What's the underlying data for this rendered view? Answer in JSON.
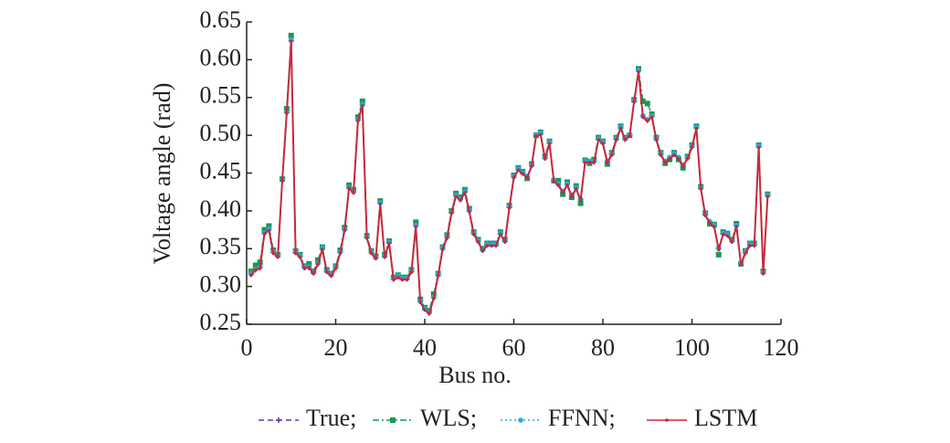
{
  "chart_data": {
    "type": "line",
    "x_label": "Bus no.",
    "y_label": "Voltage angle (rad)",
    "xlim": [
      0,
      120
    ],
    "xticks": [
      0,
      20,
      40,
      60,
      80,
      100,
      120
    ],
    "ylim": [
      0.25,
      0.65
    ],
    "yticks": [
      0.25,
      {
        "value": 0.3,
        "label": "0.30"
      },
      0.35,
      {
        "value": 0.4,
        "label": "0.40"
      },
      0.45,
      {
        "value": 0.5,
        "label": "0.50"
      },
      0.55,
      {
        "value": 0.6,
        "label": "0.60"
      },
      0.65
    ],
    "x": [
      1,
      2,
      3,
      4,
      5,
      6,
      7,
      8,
      9,
      10,
      11,
      12,
      13,
      14,
      15,
      16,
      17,
      18,
      19,
      20,
      21,
      22,
      23,
      24,
      25,
      26,
      27,
      28,
      29,
      30,
      31,
      32,
      33,
      34,
      35,
      36,
      37,
      38,
      39,
      40,
      41,
      42,
      43,
      44,
      45,
      46,
      47,
      48,
      49,
      50,
      51,
      52,
      53,
      54,
      55,
      56,
      57,
      58,
      59,
      60,
      61,
      62,
      63,
      64,
      65,
      66,
      67,
      68,
      69,
      70,
      71,
      72,
      73,
      74,
      75,
      76,
      77,
      78,
      79,
      80,
      81,
      82,
      83,
      84,
      85,
      86,
      87,
      88,
      89,
      90,
      91,
      92,
      93,
      94,
      95,
      96,
      97,
      98,
      99,
      100,
      101,
      102,
      103,
      104,
      105,
      106,
      107,
      108,
      109,
      110,
      111,
      112,
      113,
      114,
      115,
      116,
      117
    ],
    "series": [
      {
        "name": "True;",
        "color": "#7030a0",
        "style": "dashed",
        "marker": "plus",
        "values": [
          0.316,
          0.322,
          0.325,
          0.37,
          0.375,
          0.345,
          0.34,
          0.44,
          0.53,
          0.625,
          0.345,
          0.34,
          0.325,
          0.325,
          0.318,
          0.33,
          0.35,
          0.32,
          0.315,
          0.325,
          0.345,
          0.375,
          0.43,
          0.425,
          0.52,
          0.54,
          0.365,
          0.345,
          0.338,
          0.41,
          0.34,
          0.358,
          0.31,
          0.313,
          0.31,
          0.31,
          0.32,
          0.38,
          0.28,
          0.27,
          0.265,
          0.285,
          0.315,
          0.35,
          0.365,
          0.398,
          0.42,
          0.415,
          0.425,
          0.4,
          0.37,
          0.36,
          0.348,
          0.355,
          0.355,
          0.355,
          0.37,
          0.36,
          0.405,
          0.445,
          0.455,
          0.45,
          0.445,
          0.46,
          0.5,
          0.502,
          0.47,
          0.49,
          0.44,
          0.435,
          0.425,
          0.435,
          0.42,
          0.43,
          0.415,
          0.465,
          0.465,
          0.465,
          0.495,
          0.49,
          0.465,
          0.475,
          0.495,
          0.51,
          0.495,
          0.5,
          0.545,
          0.585,
          0.525,
          0.52,
          0.525,
          0.495,
          0.475,
          0.465,
          0.47,
          0.475,
          0.47,
          0.46,
          0.47,
          0.485,
          0.51,
          0.43,
          0.395,
          0.385,
          0.38,
          0.35,
          0.37,
          0.368,
          0.36,
          0.38,
          0.33,
          0.345,
          0.355,
          0.355,
          0.485,
          0.318,
          0.42
        ]
      },
      {
        "name": "WLS;",
        "color": "#1a9850",
        "style": "dashdot",
        "marker": "square",
        "values": [
          0.32,
          0.328,
          0.332,
          0.375,
          0.38,
          0.348,
          0.342,
          0.442,
          0.535,
          0.632,
          0.347,
          0.342,
          0.327,
          0.33,
          0.32,
          0.335,
          0.352,
          0.322,
          0.317,
          0.327,
          0.348,
          0.378,
          0.434,
          0.428,
          0.524,
          0.545,
          0.367,
          0.347,
          0.34,
          0.413,
          0.342,
          0.36,
          0.312,
          0.315,
          0.312,
          0.312,
          0.322,
          0.385,
          0.283,
          0.272,
          0.268,
          0.29,
          0.317,
          0.352,
          0.368,
          0.4,
          0.423,
          0.418,
          0.428,
          0.403,
          0.372,
          0.362,
          0.35,
          0.357,
          0.357,
          0.357,
          0.372,
          0.362,
          0.407,
          0.447,
          0.457,
          0.452,
          0.443,
          0.462,
          0.5,
          0.504,
          0.472,
          0.492,
          0.44,
          0.44,
          0.422,
          0.438,
          0.418,
          0.433,
          0.41,
          0.467,
          0.463,
          0.468,
          0.497,
          0.492,
          0.462,
          0.477,
          0.497,
          0.512,
          0.497,
          0.5,
          0.547,
          0.588,
          0.545,
          0.542,
          0.528,
          0.497,
          0.477,
          0.463,
          0.468,
          0.477,
          0.468,
          0.457,
          0.472,
          0.487,
          0.512,
          0.432,
          0.397,
          0.383,
          0.382,
          0.342,
          0.372,
          0.37,
          0.362,
          0.383,
          0.33,
          0.347,
          0.357,
          0.357,
          0.487,
          0.32,
          0.422
        ]
      },
      {
        "name": "FFNN;",
        "color": "#29a8e0",
        "style": "dotted",
        "marker": "circle",
        "values": [
          0.317,
          0.323,
          0.326,
          0.371,
          0.376,
          0.346,
          0.341,
          0.441,
          0.531,
          0.627,
          0.346,
          0.341,
          0.326,
          0.326,
          0.319,
          0.331,
          0.351,
          0.321,
          0.316,
          0.326,
          0.346,
          0.376,
          0.431,
          0.426,
          0.521,
          0.541,
          0.366,
          0.346,
          0.339,
          0.411,
          0.341,
          0.359,
          0.311,
          0.314,
          0.311,
          0.311,
          0.321,
          0.381,
          0.281,
          0.271,
          0.266,
          0.286,
          0.316,
          0.351,
          0.366,
          0.399,
          0.421,
          0.416,
          0.426,
          0.401,
          0.371,
          0.361,
          0.349,
          0.356,
          0.356,
          0.356,
          0.371,
          0.361,
          0.406,
          0.446,
          0.456,
          0.451,
          0.446,
          0.461,
          0.501,
          0.503,
          0.471,
          0.491,
          0.441,
          0.436,
          0.426,
          0.436,
          0.421,
          0.431,
          0.416,
          0.466,
          0.466,
          0.466,
          0.496,
          0.491,
          0.466,
          0.476,
          0.496,
          0.511,
          0.496,
          0.501,
          0.546,
          0.586,
          0.526,
          0.521,
          0.526,
          0.496,
          0.476,
          0.466,
          0.471,
          0.476,
          0.471,
          0.461,
          0.471,
          0.486,
          0.511,
          0.431,
          0.396,
          0.386,
          0.381,
          0.351,
          0.371,
          0.369,
          0.361,
          0.381,
          0.331,
          0.346,
          0.356,
          0.356,
          0.486,
          0.319,
          0.421
        ]
      },
      {
        "name": "LSTM",
        "color": "#c8283c",
        "style": "solid",
        "marker": "dot",
        "values": [
          0.315,
          0.322,
          0.324,
          0.37,
          0.374,
          0.344,
          0.339,
          0.44,
          0.529,
          0.624,
          0.344,
          0.339,
          0.324,
          0.325,
          0.317,
          0.329,
          0.349,
          0.319,
          0.314,
          0.324,
          0.344,
          0.374,
          0.43,
          0.424,
          0.519,
          0.539,
          0.364,
          0.344,
          0.337,
          0.409,
          0.339,
          0.357,
          0.309,
          0.312,
          0.309,
          0.309,
          0.319,
          0.379,
          0.279,
          0.269,
          0.264,
          0.284,
          0.314,
          0.349,
          0.364,
          0.397,
          0.419,
          0.414,
          0.424,
          0.399,
          0.369,
          0.359,
          0.347,
          0.354,
          0.354,
          0.354,
          0.369,
          0.359,
          0.404,
          0.444,
          0.454,
          0.449,
          0.444,
          0.459,
          0.499,
          0.501,
          0.469,
          0.489,
          0.439,
          0.434,
          0.424,
          0.434,
          0.419,
          0.429,
          0.414,
          0.464,
          0.464,
          0.464,
          0.494,
          0.489,
          0.464,
          0.474,
          0.494,
          0.509,
          0.494,
          0.499,
          0.544,
          0.584,
          0.524,
          0.519,
          0.524,
          0.494,
          0.474,
          0.464,
          0.469,
          0.474,
          0.469,
          0.459,
          0.469,
          0.484,
          0.509,
          0.429,
          0.394,
          0.384,
          0.379,
          0.349,
          0.369,
          0.367,
          0.359,
          0.379,
          0.329,
          0.344,
          0.354,
          0.354,
          0.484,
          0.317,
          0.419
        ]
      }
    ]
  }
}
